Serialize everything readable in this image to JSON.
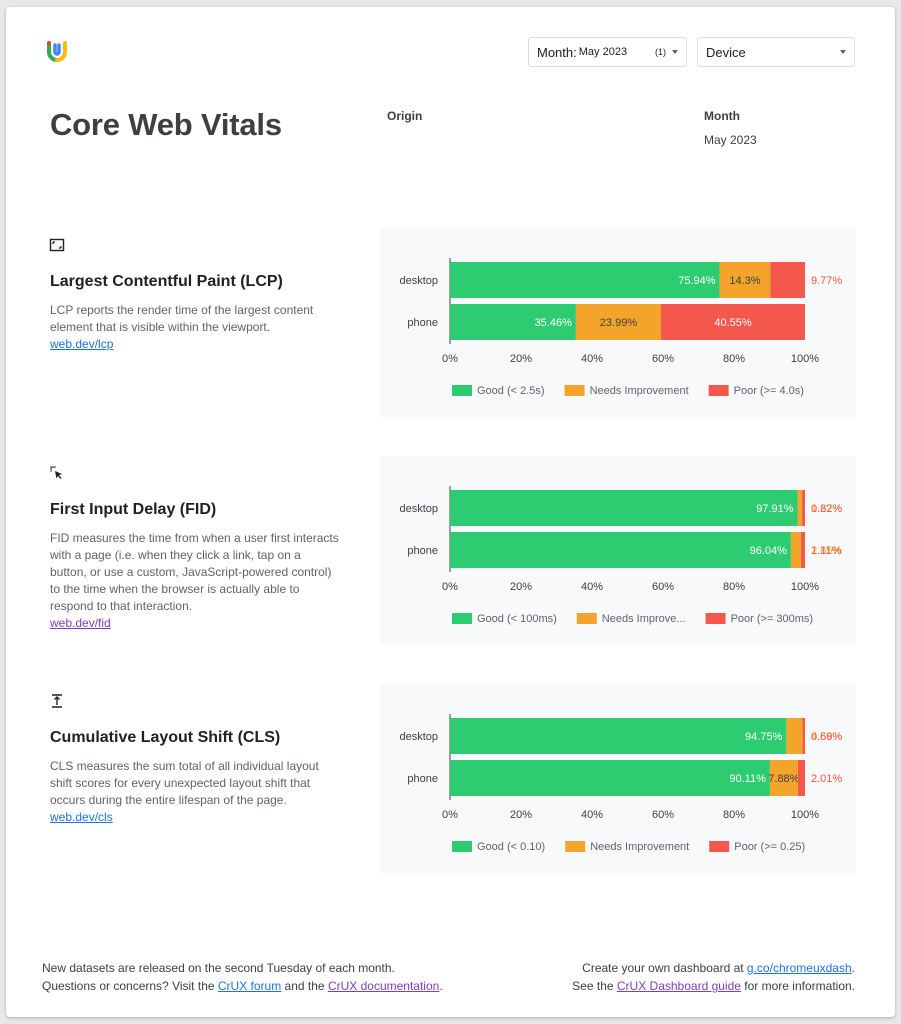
{
  "header": {
    "title": "Core Web Vitals",
    "month_label": "Month:",
    "month_value": "May 2023",
    "month_count": "(1)",
    "device_label": "Device",
    "origin_label": "Origin",
    "month_header": "Month",
    "month_header_value": "May 2023"
  },
  "sections": [
    {
      "icon": "lcp-frame-icon",
      "title": "Largest Contentful Paint (LCP)",
      "description": "LCP reports the render time of the largest content element that is visible within the viewport.",
      "link": "web.dev/lcp",
      "link_color": "#1a73e8"
    },
    {
      "icon": "cursor-click-icon",
      "title": "First Input Delay (FID)",
      "description": "FID measures the time from when a user first interacts with a page (i.e. when they click a link, tap on a button, or use a custom, JavaScript-powered control) to the time when the browser is actually able to respond to that interaction.",
      "link": "web.dev/fid",
      "link_color": "#7b3fbf"
    },
    {
      "icon": "layout-shift-icon",
      "title": "Cumulative Layout Shift (CLS)",
      "description": "CLS measures the sum total of all individual layout shift scores for every unexpected layout shift that occurs during the entire lifespan of the page.",
      "link": "web.dev/cls",
      "link_color": "#1a73e8"
    }
  ],
  "colors": {
    "good": "#2ecc71",
    "ni": "#f4a42a",
    "poor": "#f4574b"
  },
  "chart_data": [
    {
      "type": "bar",
      "stacked": true,
      "orientation": "horizontal",
      "categories": [
        "desktop",
        "phone"
      ],
      "series": [
        {
          "name": "Good (< 2.5s)",
          "values": [
            75.94,
            35.46
          ],
          "labels": [
            "75.94%",
            "35.46%"
          ]
        },
        {
          "name": "Needs Improvement",
          "values": [
            14.3,
            23.99
          ],
          "labels": [
            "14.3%",
            "23.99%"
          ]
        },
        {
          "name": "Poor (>= 4.0s)",
          "values": [
            9.77,
            40.55
          ],
          "labels": [
            "9.77%",
            "40.55%"
          ]
        }
      ],
      "ticks": [
        "0%",
        "20%",
        "40%",
        "60%",
        "80%",
        "100%"
      ],
      "xlim": [
        0,
        100
      ]
    },
    {
      "type": "bar",
      "stacked": true,
      "orientation": "horizontal",
      "categories": [
        "desktop",
        "phone"
      ],
      "series": [
        {
          "name": "Good (< 100ms)",
          "values": [
            97.91,
            96.04
          ],
          "labels": [
            "97.91%",
            "96.04%"
          ]
        },
        {
          "name": "Needs Improve...",
          "values": [
            1.27,
            2.85
          ],
          "labels": [
            "1.27%",
            "2.85%"
          ]
        },
        {
          "name": "Poor (>= 300ms)",
          "values": [
            0.82,
            1.11
          ],
          "labels": [
            "0.82%",
            "1.11%"
          ]
        }
      ],
      "ticks": [
        "0%",
        "20%",
        "40%",
        "60%",
        "80%",
        "100%"
      ],
      "xlim": [
        0,
        100
      ]
    },
    {
      "type": "bar",
      "stacked": true,
      "orientation": "horizontal",
      "categories": [
        "desktop",
        "phone"
      ],
      "series": [
        {
          "name": "Good (< 0.10)",
          "values": [
            94.75,
            90.11
          ],
          "labels": [
            "94.75%",
            "90.11%"
          ]
        },
        {
          "name": "Needs Improvement",
          "values": [
            4.56,
            7.88
          ],
          "labels": [
            "4.56%",
            "7.88%"
          ]
        },
        {
          "name": "Poor (>= 0.25)",
          "values": [
            0.69,
            2.01
          ],
          "labels": [
            "0.69%",
            "2.01%"
          ]
        }
      ],
      "ticks": [
        "0%",
        "20%",
        "40%",
        "60%",
        "80%",
        "100%"
      ],
      "xlim": [
        0,
        100
      ]
    }
  ],
  "footer": {
    "left_line1": "New datasets are released on the second Tuesday of each month.",
    "left_line2_pre": "Questions or concerns? Visit the ",
    "forum_link": "CrUX forum",
    "left_line2_mid": " and the ",
    "docs_link": "CrUX documentation",
    "left_line2_post": ".",
    "right_line1_pre": "Create your own dashboard at ",
    "dash_link": "g.co/chromeuxdash",
    "right_line1_post": ".",
    "right_line2_pre": "See the ",
    "guide_link": "CrUX Dashboard guide",
    "right_line2_post": " for more information."
  }
}
